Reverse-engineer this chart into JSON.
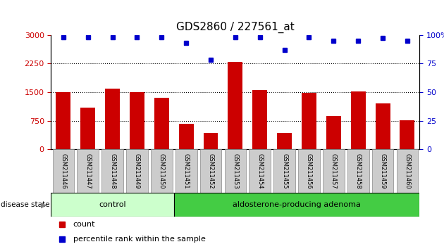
{
  "title": "GDS2860 / 227561_at",
  "categories": [
    "GSM211446",
    "GSM211447",
    "GSM211448",
    "GSM211449",
    "GSM211450",
    "GSM211451",
    "GSM211452",
    "GSM211453",
    "GSM211454",
    "GSM211455",
    "GSM211456",
    "GSM211457",
    "GSM211458",
    "GSM211459",
    "GSM211460"
  ],
  "bar_values": [
    1500,
    1100,
    1600,
    1500,
    1350,
    670,
    430,
    2300,
    1560,
    430,
    1480,
    870,
    1520,
    1200,
    760
  ],
  "percentile_values": [
    98,
    98,
    98,
    98,
    98,
    93,
    78,
    98,
    98,
    87,
    98,
    95,
    95,
    97,
    95
  ],
  "bar_color": "#cc0000",
  "percentile_color": "#0000cc",
  "ylim_left": [
    0,
    3000
  ],
  "ylim_right": [
    0,
    100
  ],
  "yticks_left": [
    0,
    750,
    1500,
    2250,
    3000
  ],
  "yticks_right": [
    0,
    25,
    50,
    75,
    100
  ],
  "grid_values": [
    750,
    1500,
    2250
  ],
  "control_samples": 5,
  "total_samples": 15,
  "label_control": "control",
  "label_adenoma": "aldosterone-producing adenoma",
  "label_disease": "disease state",
  "legend_count": "count",
  "legend_percentile": "percentile rank within the sample",
  "bg_control": "#ccffcc",
  "bg_adenoma": "#44cc44",
  "bg_xticklabels": "#cccccc",
  "title_fontsize": 11,
  "tick_fontsize": 8,
  "bar_width": 0.6,
  "fig_width": 6.3,
  "fig_height": 3.54,
  "dpi": 100
}
